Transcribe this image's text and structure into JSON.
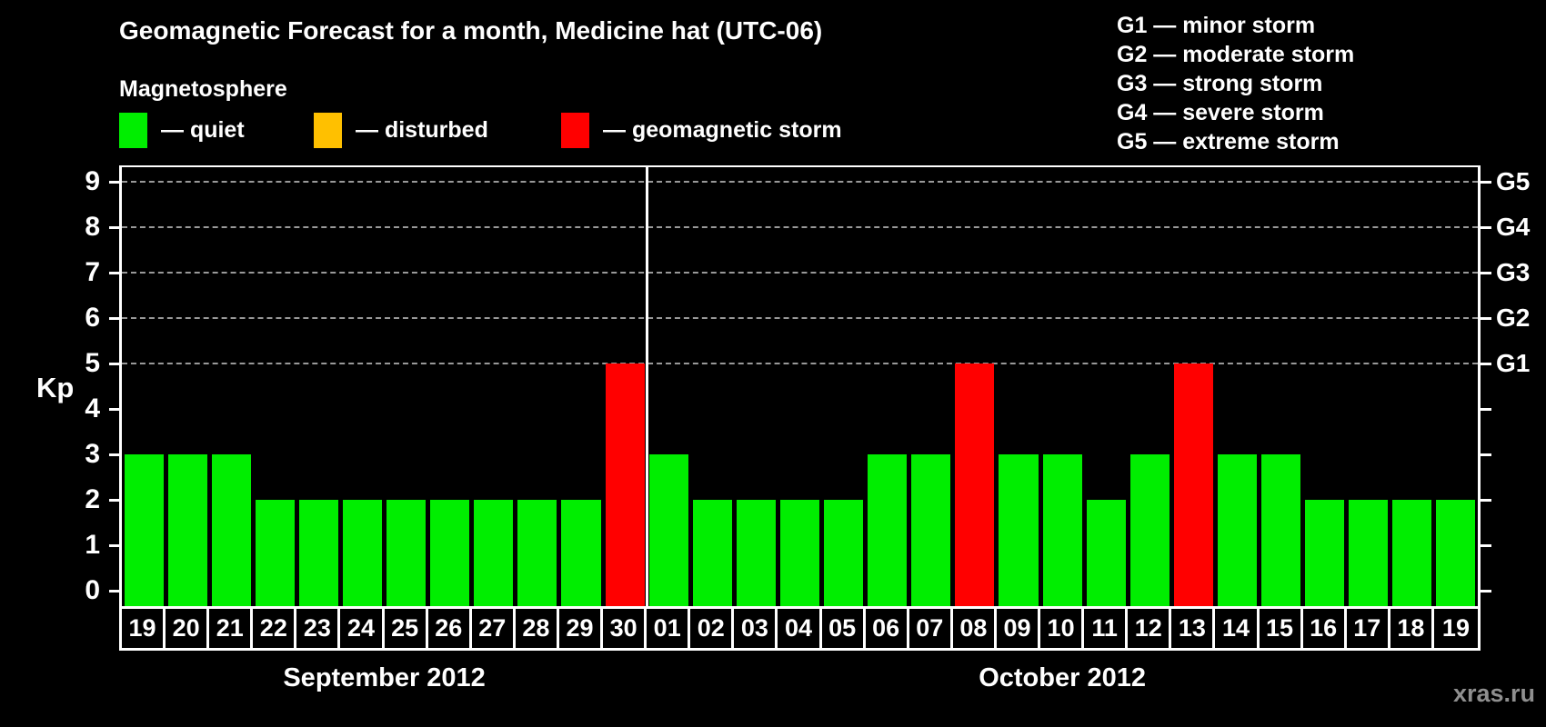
{
  "title": "Geomagnetic Forecast for a month, Medicine hat (UTC-06)",
  "legend": {
    "heading": "Magnetosphere",
    "items": [
      {
        "key": "quiet",
        "label": "— quiet"
      },
      {
        "key": "disturbed",
        "label": "— disturbed"
      },
      {
        "key": "storm",
        "label": "— geomagnetic storm"
      }
    ]
  },
  "g_scale_legend": [
    "G1 — minor storm",
    "G2 — moderate storm",
    "G3 — strong storm",
    "G4 — severe storm",
    "G5 — extreme storm"
  ],
  "watermark": "xras.ru",
  "chart_data": {
    "type": "bar",
    "title": "Geomagnetic Forecast for a month, Medicine hat (UTC-06)",
    "ylabel": "Kp",
    "ylim": [
      0,
      9
    ],
    "yticks": [
      0,
      1,
      2,
      3,
      4,
      5,
      6,
      7,
      8,
      9
    ],
    "gridlines_at": [
      5,
      6,
      7,
      8,
      9
    ],
    "grid": "dashed horizontal at storm levels only",
    "legend_position": "top-left",
    "colors": {
      "quiet": "#00EE00",
      "disturbed": "#FFC000",
      "storm": "#FF0000"
    },
    "right_axis": [
      {
        "kp": 5,
        "label": "G1"
      },
      {
        "kp": 6,
        "label": "G2"
      },
      {
        "kp": 7,
        "label": "G3"
      },
      {
        "kp": 8,
        "label": "G4"
      },
      {
        "kp": 9,
        "label": "G5"
      }
    ],
    "groups": [
      {
        "label": "September 2012",
        "days": [
          {
            "day": "19",
            "kp": 3,
            "status": "quiet"
          },
          {
            "day": "20",
            "kp": 3,
            "status": "quiet"
          },
          {
            "day": "21",
            "kp": 3,
            "status": "quiet"
          },
          {
            "day": "22",
            "kp": 2,
            "status": "quiet"
          },
          {
            "day": "23",
            "kp": 2,
            "status": "quiet"
          },
          {
            "day": "24",
            "kp": 2,
            "status": "quiet"
          },
          {
            "day": "25",
            "kp": 2,
            "status": "quiet"
          },
          {
            "day": "26",
            "kp": 2,
            "status": "quiet"
          },
          {
            "day": "27",
            "kp": 2,
            "status": "quiet"
          },
          {
            "day": "28",
            "kp": 2,
            "status": "quiet"
          },
          {
            "day": "29",
            "kp": 2,
            "status": "quiet"
          },
          {
            "day": "30",
            "kp": 5,
            "status": "storm"
          }
        ]
      },
      {
        "label": "October 2012",
        "days": [
          {
            "day": "01",
            "kp": 3,
            "status": "quiet"
          },
          {
            "day": "02",
            "kp": 2,
            "status": "quiet"
          },
          {
            "day": "03",
            "kp": 2,
            "status": "quiet"
          },
          {
            "day": "04",
            "kp": 2,
            "status": "quiet"
          },
          {
            "day": "05",
            "kp": 2,
            "status": "quiet"
          },
          {
            "day": "06",
            "kp": 3,
            "status": "quiet"
          },
          {
            "day": "07",
            "kp": 3,
            "status": "quiet"
          },
          {
            "day": "08",
            "kp": 5,
            "status": "storm"
          },
          {
            "day": "09",
            "kp": 3,
            "status": "quiet"
          },
          {
            "day": "10",
            "kp": 3,
            "status": "quiet"
          },
          {
            "day": "11",
            "kp": 2,
            "status": "quiet"
          },
          {
            "day": "12",
            "kp": 3,
            "status": "quiet"
          },
          {
            "day": "13",
            "kp": 5,
            "status": "storm"
          },
          {
            "day": "14",
            "kp": 3,
            "status": "quiet"
          },
          {
            "day": "15",
            "kp": 3,
            "status": "quiet"
          },
          {
            "day": "16",
            "kp": 2,
            "status": "quiet"
          },
          {
            "day": "17",
            "kp": 2,
            "status": "quiet"
          },
          {
            "day": "18",
            "kp": 2,
            "status": "quiet"
          },
          {
            "day": "19",
            "kp": 2,
            "status": "quiet"
          }
        ]
      }
    ]
  }
}
